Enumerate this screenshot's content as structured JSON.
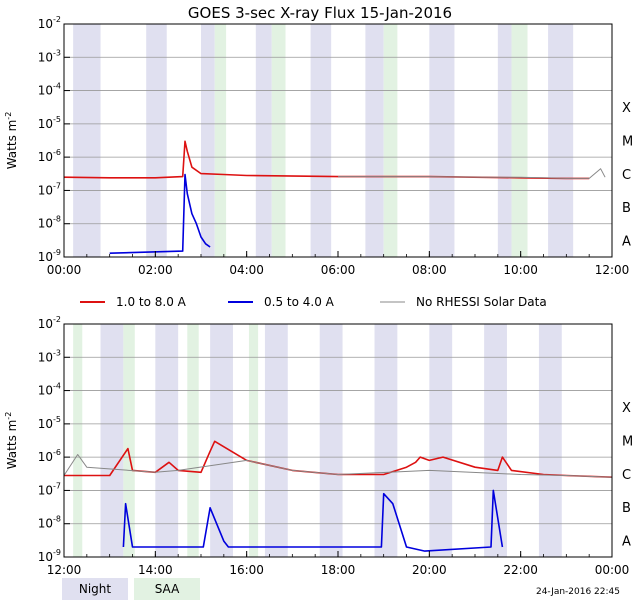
{
  "title": "GOES 3-sec X-ray Flux    15-Jan-2016",
  "ylabel": "Watts m",
  "ylabel_sup": "-2",
  "y_ticks": [
    {
      "base": "10",
      "exp": "-2"
    },
    {
      "base": "10",
      "exp": "-3"
    },
    {
      "base": "10",
      "exp": "-4"
    },
    {
      "base": "10",
      "exp": "-5"
    },
    {
      "base": "10",
      "exp": "-6"
    },
    {
      "base": "10",
      "exp": "-7"
    },
    {
      "base": "10",
      "exp": "-8"
    },
    {
      "base": "10",
      "exp": "-9"
    }
  ],
  "flare_classes": [
    "X",
    "M",
    "C",
    "B",
    "A"
  ],
  "legend": {
    "long": "1.0 to 8.0 A",
    "short": "0.5 to 4.0 A",
    "none": "No RHESSI Solar Data"
  },
  "bottom_legend": {
    "night": "Night",
    "saa": "SAA"
  },
  "timestamp": "24-Jan-2016 22:45",
  "colors": {
    "long": "#dd1111",
    "short": "#0000dd",
    "none": "#888888",
    "night": "#e0e0f0",
    "saa": "#e2f2e2",
    "grid": "#999999"
  },
  "chart_data": [
    {
      "type": "line",
      "x_ticks": [
        "00:00",
        "02:00",
        "04:00",
        "06:00",
        "08:00",
        "10:00",
        "12:00"
      ],
      "xlim_hours": [
        0,
        12
      ],
      "ylim": [
        1e-09,
        0.01
      ],
      "yscale": "log",
      "night_intervals": [
        [
          0.2,
          0.8
        ],
        [
          1.8,
          2.25
        ],
        [
          3.0,
          3.3
        ],
        [
          4.2,
          4.55
        ],
        [
          5.4,
          5.85
        ],
        [
          6.6,
          7.0
        ],
        [
          8.0,
          8.55
        ],
        [
          9.5,
          9.8
        ],
        [
          10.6,
          11.15
        ]
      ],
      "saa_intervals": [
        [
          3.3,
          3.55
        ],
        [
          4.55,
          4.85
        ],
        [
          7.0,
          7.3
        ],
        [
          9.8,
          10.15
        ]
      ],
      "series": [
        {
          "name": "1.0 to 8.0 A",
          "x": [
            0,
            1,
            2,
            2.6,
            2.65,
            2.7,
            2.8,
            3.0,
            3.5,
            4.0,
            6.0,
            8.0,
            10.0,
            11.0,
            11.5
          ],
          "y": [
            2.5e-07,
            2.4e-07,
            2.4e-07,
            2.6e-07,
            3e-06,
            1.5e-06,
            5e-07,
            3.2e-07,
            3e-07,
            2.8e-07,
            2.6e-07,
            2.6e-07,
            2.4e-07,
            2.3e-07,
            2.3e-07
          ]
        },
        {
          "name": "0.5 to 4.0 A",
          "x": [
            1.0,
            2.6,
            2.65,
            2.7,
            2.8,
            2.9,
            3.0,
            3.1,
            3.2
          ],
          "y": [
            1.3e-09,
            1.5e-09,
            3e-07,
            8e-08,
            2e-08,
            1e-08,
            4e-09,
            2.5e-09,
            2e-09
          ]
        },
        {
          "name": "No RHESSI Solar Data",
          "x": [
            6.0,
            8.0,
            9.3,
            10.0,
            11.0,
            11.5,
            11.75,
            11.85
          ],
          "y": [
            2.6e-07,
            2.6e-07,
            2.5e-07,
            2.5e-07,
            2.3e-07,
            2.3e-07,
            4.5e-07,
            2.5e-07
          ]
        }
      ]
    },
    {
      "type": "line",
      "x_ticks": [
        "12:00",
        "14:00",
        "16:00",
        "18:00",
        "20:00",
        "22:00",
        "00:00"
      ],
      "xlim_hours": [
        12,
        24
      ],
      "ylim": [
        1e-09,
        0.01
      ],
      "yscale": "log",
      "night_intervals": [
        [
          12.8,
          13.3
        ],
        [
          14.0,
          14.5
        ],
        [
          15.2,
          15.7
        ],
        [
          16.4,
          16.9
        ],
        [
          17.6,
          18.1
        ],
        [
          18.8,
          19.3
        ],
        [
          20.0,
          20.5
        ],
        [
          21.2,
          21.7
        ],
        [
          22.4,
          22.9
        ]
      ],
      "saa_intervals": [
        [
          12.2,
          12.4
        ],
        [
          13.3,
          13.55
        ],
        [
          14.7,
          14.95
        ],
        [
          16.05,
          16.25
        ]
      ],
      "series": [
        {
          "name": "1.0 to 8.0 A",
          "x": [
            12.0,
            13.0,
            13.4,
            13.5,
            14.0,
            14.3,
            14.5,
            15.0,
            15.2,
            15.3,
            16.0,
            17.0,
            18.0,
            19.0,
            19.5,
            19.7,
            19.8,
            20.0,
            20.3,
            21.0,
            21.5,
            21.6,
            21.8,
            22.5,
            23.0,
            24.0
          ],
          "y": [
            2.8e-07,
            2.8e-07,
            1.8e-06,
            4e-07,
            3.5e-07,
            7e-07,
            4e-07,
            3.5e-07,
            1.5e-06,
            3e-06,
            8e-07,
            4e-07,
            3e-07,
            3e-07,
            5e-07,
            7e-07,
            1e-06,
            8e-07,
            1e-06,
            5e-07,
            4e-07,
            1e-06,
            4e-07,
            3e-07,
            2.8e-07,
            2.5e-07
          ]
        },
        {
          "name": "0.5 to 4.0 A",
          "x": [
            13.3,
            13.35,
            13.5,
            15.05,
            15.2,
            15.5,
            15.6,
            18.95,
            19.0,
            19.2,
            19.5,
            19.9,
            21.35,
            21.4,
            21.6
          ],
          "y": [
            2e-09,
            4e-08,
            2e-09,
            2e-09,
            3e-08,
            3e-09,
            2e-09,
            2e-09,
            8e-08,
            4e-08,
            2e-09,
            1.5e-09,
            2e-09,
            1e-07,
            2e-09
          ]
        },
        {
          "name": "No RHESSI Solar Data",
          "x": [
            12.0,
            12.3,
            12.5,
            14.0,
            14.5,
            16.0,
            17.0,
            18.0,
            20.0,
            22.0,
            23.0,
            24.0
          ],
          "y": [
            2.8e-07,
            1.2e-06,
            5e-07,
            3.5e-07,
            4e-07,
            8e-07,
            4e-07,
            3e-07,
            4e-07,
            3e-07,
            2.8e-07,
            2.5e-07
          ]
        }
      ]
    }
  ]
}
